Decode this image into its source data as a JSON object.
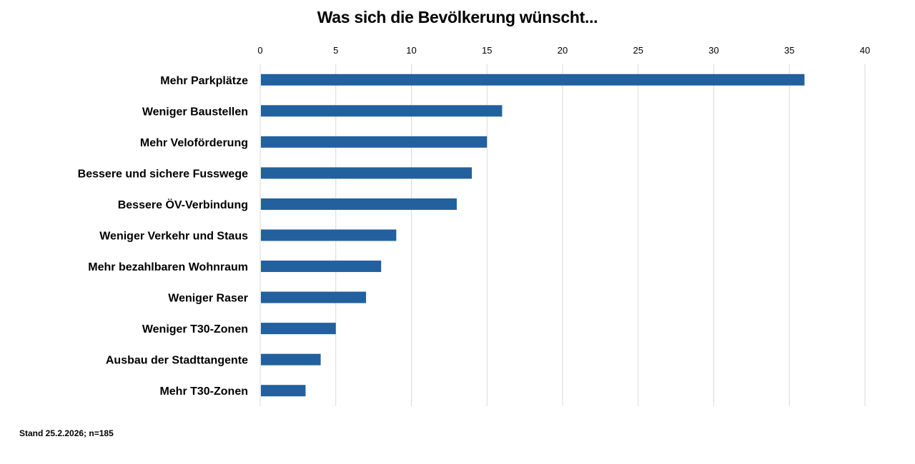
{
  "chart_data": {
    "type": "bar",
    "orientation": "horizontal",
    "title": "Was sich die Bevölkerung wünscht...",
    "categories": [
      "Mehr Parkplätze",
      "Weniger Baustellen",
      "Mehr Veloförderung",
      "Bessere und sichere Fusswege",
      "Bessere ÖV-Verbindung",
      "Weniger Verkehr und Staus",
      "Mehr bezahlbaren Wohnraum",
      "Weniger Raser",
      "Weniger T30-Zonen",
      "Ausbau der Stadttangente",
      "Mehr T30-Zonen"
    ],
    "values": [
      36,
      16,
      15,
      14,
      13,
      9,
      8,
      7,
      5,
      4,
      3
    ],
    "xlabel": "",
    "ylabel": "",
    "xlim": [
      0,
      40
    ],
    "xticks": [
      0,
      5,
      10,
      15,
      20,
      25,
      30,
      35,
      40
    ],
    "x_axis_position": "top",
    "grid": true,
    "legend": "none",
    "bar_color": "#22609e",
    "grid_color": "#d9d9d9"
  },
  "footnote": "Stand 25.2.2026; n=185"
}
